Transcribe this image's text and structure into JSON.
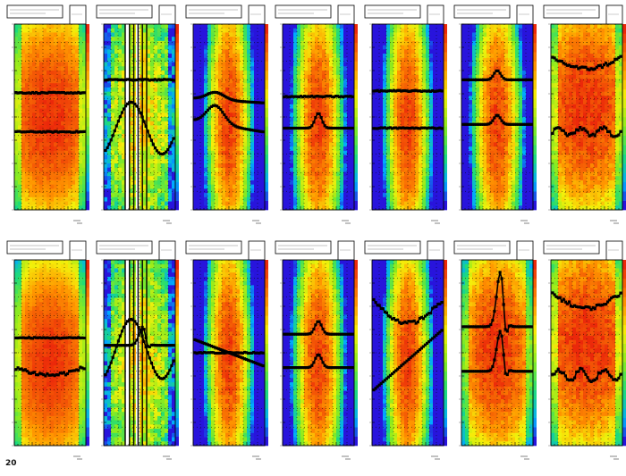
{
  "page": {
    "footer_text": "",
    "footer_code": "20"
  },
  "chart_data": {
    "type": "heatmap",
    "grid": true,
    "legend_placement": "top-right",
    "panels": [
      {
        "palette": "warm",
        "core": 0.5,
        "width": 1.2,
        "noise": 0.04,
        "profiles": [
          {
            "y": 0.63,
            "shape": "flat",
            "amp": 0
          },
          {
            "y": 0.42,
            "shape": "flat",
            "amp": 0
          }
        ]
      },
      {
        "palette": "cool",
        "core": 0.5,
        "width": 0.9,
        "noise": 0.14,
        "bands": true,
        "profiles": [
          {
            "y": 0.44,
            "shape": "wave",
            "amp": 0.14
          },
          {
            "y": 0.7,
            "shape": "flat",
            "amp": 0
          }
        ]
      },
      {
        "palette": "mid",
        "core": 0.48,
        "width": 0.55,
        "noise": 0.06,
        "profiles": [
          {
            "y": 0.6,
            "shape": "bump",
            "amp": 0.04
          },
          {
            "y": 0.48,
            "shape": "bump",
            "amp": 0.1
          }
        ]
      },
      {
        "palette": "mid",
        "core": 0.47,
        "width": 0.6,
        "noise": 0.06,
        "profiles": [
          {
            "y": 0.61,
            "shape": "flat",
            "amp": 0
          },
          {
            "y": 0.44,
            "shape": "peak",
            "amp": 0.08
          }
        ]
      },
      {
        "palette": "mid",
        "core": 0.47,
        "width": 0.55,
        "noise": 0.05,
        "profiles": [
          {
            "y": 0.64,
            "shape": "flat",
            "amp": 0
          },
          {
            "y": 0.44,
            "shape": "flat",
            "amp": 0
          }
        ]
      },
      {
        "palette": "mid",
        "core": 0.47,
        "width": 0.6,
        "noise": 0.06,
        "profiles": [
          {
            "y": 0.7,
            "shape": "peak",
            "amp": 0.05
          },
          {
            "y": 0.46,
            "shape": "peak",
            "amp": 0.05
          }
        ]
      },
      {
        "palette": "warm",
        "core": 0.55,
        "width": 1.2,
        "noise": 0.06,
        "profiles": [
          {
            "y": 0.82,
            "shape": "valley",
            "amp": 0.06
          },
          {
            "y": 0.42,
            "shape": "wiggle",
            "amp": 0.02
          }
        ]
      },
      {
        "palette": "warm",
        "core": 0.45,
        "width": 1.1,
        "noise": 0.03,
        "profiles": [
          {
            "y": 0.58,
            "shape": "flat",
            "amp": 0
          },
          {
            "y": 0.42,
            "shape": "valley",
            "amp": 0.04
          }
        ]
      },
      {
        "palette": "cool",
        "core": 0.45,
        "width": 0.8,
        "noise": 0.14,
        "bands": true,
        "profiles": [
          {
            "y": 0.52,
            "shape": "wave",
            "amp": 0.16
          },
          {
            "y": 0.54,
            "shape": "spike",
            "amp": 0.1
          }
        ]
      },
      {
        "palette": "mid",
        "core": 0.48,
        "width": 0.55,
        "noise": 0.06,
        "profiles": [
          {
            "y": 0.5,
            "shape": "flat",
            "amp": 0
          },
          {
            "y": 0.5,
            "shape": "slope",
            "amp": 0.14
          }
        ]
      },
      {
        "palette": "mid",
        "core": 0.45,
        "width": 0.6,
        "noise": 0.06,
        "profiles": [
          {
            "y": 0.6,
            "shape": "peak",
            "amp": 0.07
          },
          {
            "y": 0.42,
            "shape": "peak",
            "amp": 0.07
          }
        ]
      },
      {
        "palette": "mid",
        "core": 0.45,
        "width": 0.55,
        "noise": 0.06,
        "profiles": [
          {
            "y": 0.78,
            "shape": "valley",
            "amp": 0.12
          },
          {
            "y": 0.3,
            "shape": "rise",
            "amp": 0.32
          }
        ]
      },
      {
        "palette": "warm",
        "core": 0.5,
        "width": 0.9,
        "noise": 0.06,
        "profiles": [
          {
            "y": 0.64,
            "shape": "spike",
            "amp": 0.3
          },
          {
            "y": 0.4,
            "shape": "spike",
            "amp": 0.22
          }
        ]
      },
      {
        "palette": "warm",
        "core": 0.55,
        "width": 1.3,
        "noise": 0.06,
        "profiles": [
          {
            "y": 0.82,
            "shape": "valley",
            "amp": 0.08
          },
          {
            "y": 0.38,
            "shape": "wiggle",
            "amp": 0.03
          }
        ]
      }
    ]
  }
}
